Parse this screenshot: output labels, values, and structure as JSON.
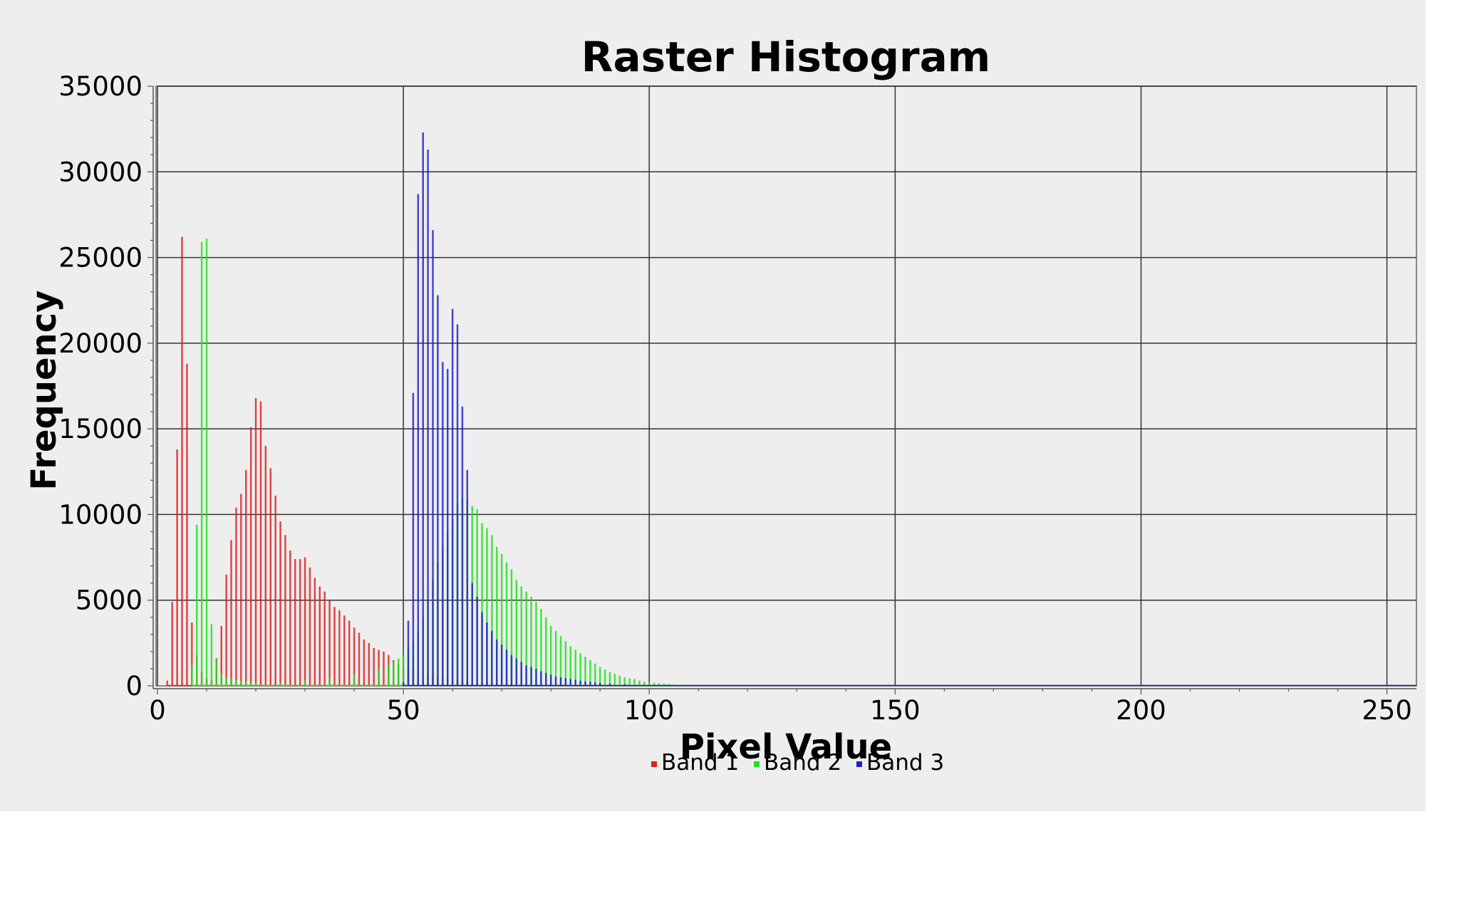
{
  "chart_data": {
    "type": "bar",
    "title": "Raster Histogram",
    "xlabel": "Pixel Value",
    "ylabel": "Frequency",
    "xlim": [
      0,
      256
    ],
    "ylim": [
      0,
      35000
    ],
    "x_ticks": [
      0,
      50,
      100,
      150,
      200,
      250
    ],
    "y_ticks": [
      0,
      5000,
      10000,
      15000,
      20000,
      25000,
      30000,
      35000
    ],
    "grid": true,
    "legend_position": "bottom",
    "series": [
      {
        "name": "Band 1",
        "color": "#e02020",
        "x": [
          2,
          3,
          4,
          5,
          6,
          7,
          8,
          9,
          10,
          11,
          12,
          13,
          14,
          15,
          16,
          17,
          18,
          19,
          20,
          21,
          22,
          23,
          24,
          25,
          26,
          27,
          28,
          29,
          30,
          31,
          32,
          33,
          34,
          35,
          36,
          37,
          38,
          39,
          40,
          41,
          42,
          43,
          44,
          45,
          46,
          47,
          48,
          49,
          50,
          51,
          52,
          53,
          54,
          55,
          56,
          57,
          58,
          59,
          60,
          61,
          62,
          63,
          64,
          65,
          66,
          67,
          68,
          69,
          70,
          75,
          80
        ],
        "values": [
          300,
          4900,
          13800,
          26200,
          18800,
          3700,
          1800,
          800,
          400,
          300,
          1600,
          3500,
          6500,
          8500,
          10400,
          11200,
          12600,
          15100,
          16800,
          16600,
          14000,
          12700,
          11100,
          9600,
          8800,
          7900,
          7400,
          7400,
          7500,
          6900,
          6300,
          5800,
          5500,
          5000,
          4600,
          4400,
          4100,
          3800,
          3400,
          3100,
          2700,
          2500,
          2200,
          2100,
          2000,
          1800,
          1500,
          1300,
          1100,
          1000,
          900,
          800,
          700,
          650,
          600,
          550,
          500,
          450,
          400,
          350,
          300,
          250,
          220,
          200,
          180,
          150,
          130,
          110,
          100,
          50,
          20
        ]
      },
      {
        "name": "Band 2",
        "color": "#20e020",
        "x": [
          7,
          8,
          9,
          10,
          11,
          12,
          13,
          14,
          15,
          16,
          17,
          18,
          19,
          20,
          25,
          30,
          35,
          40,
          45,
          47,
          48,
          49,
          50,
          51,
          52,
          53,
          54,
          55,
          56,
          57,
          58,
          59,
          60,
          61,
          62,
          63,
          64,
          65,
          66,
          67,
          68,
          69,
          70,
          71,
          72,
          73,
          74,
          75,
          76,
          77,
          78,
          79,
          80,
          81,
          82,
          83,
          84,
          85,
          86,
          87,
          88,
          89,
          90,
          91,
          92,
          93,
          94,
          95,
          96,
          97,
          98,
          99,
          100,
          101,
          102,
          103,
          104,
          105,
          108,
          110,
          115,
          120,
          125,
          130,
          140,
          150
        ],
        "values": [
          1200,
          9400,
          25900,
          26100,
          3600,
          1500,
          700,
          500,
          400,
          350,
          300,
          250,
          200,
          200,
          200,
          300,
          500,
          700,
          1000,
          1200,
          1400,
          1600,
          1800,
          2200,
          2600,
          3200,
          4000,
          5000,
          6200,
          7200,
          8200,
          9000,
          9700,
          10600,
          11000,
          10900,
          10500,
          10300,
          9500,
          9200,
          8800,
          8100,
          7700,
          7200,
          6800,
          6200,
          5800,
          5500,
          5200,
          4900,
          4500,
          4000,
          3500,
          3200,
          2900,
          2600,
          2300,
          2100,
          1900,
          1700,
          1500,
          1300,
          1100,
          950,
          800,
          700,
          600,
          500,
          450,
          400,
          300,
          250,
          200,
          180,
          150,
          120,
          100,
          80,
          60,
          50,
          30,
          20,
          10,
          5,
          3,
          1
        ]
      },
      {
        "name": "Band 3",
        "color": "#2020d0",
        "x": [
          50,
          51,
          52,
          53,
          54,
          55,
          56,
          57,
          58,
          59,
          60,
          61,
          62,
          63,
          64,
          65,
          66,
          67,
          68,
          69,
          70,
          71,
          72,
          73,
          74,
          75,
          76,
          77,
          78,
          79,
          80,
          81,
          82,
          83,
          84,
          85,
          86,
          87,
          88,
          89,
          90,
          92,
          95,
          100,
          105,
          110,
          120,
          130,
          150,
          200,
          250
        ],
        "values": [
          200,
          3800,
          17100,
          28700,
          32300,
          31300,
          26600,
          22800,
          18900,
          18500,
          22000,
          21100,
          16300,
          12600,
          6000,
          5200,
          4300,
          3700,
          3200,
          2700,
          2400,
          2100,
          1800,
          1600,
          1400,
          1200,
          1100,
          1000,
          850,
          750,
          650,
          550,
          500,
          450,
          400,
          350,
          300,
          260,
          230,
          200,
          170,
          130,
          90,
          50,
          30,
          20,
          10,
          5,
          2,
          1,
          1
        ]
      }
    ]
  }
}
